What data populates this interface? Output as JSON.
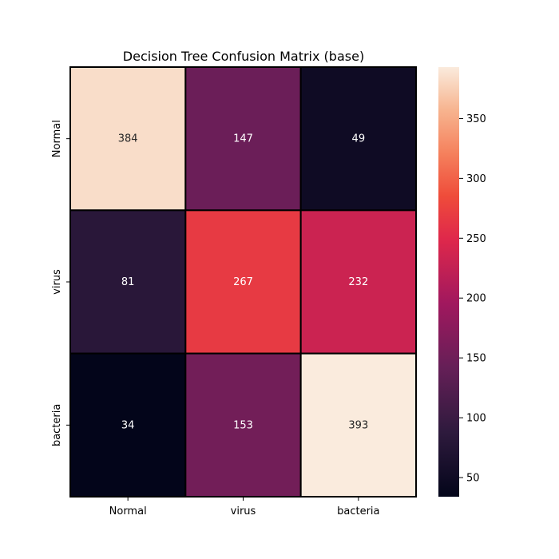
{
  "chart_data": {
    "type": "heatmap",
    "title": "Decision Tree Confusion Matrix (base)",
    "x_categories": [
      "Normal",
      "virus",
      "bacteria"
    ],
    "y_categories": [
      "Normal",
      "virus",
      "bacteria"
    ],
    "values": [
      [
        384,
        147,
        49
      ],
      [
        81,
        267,
        232
      ],
      [
        34,
        153,
        393
      ]
    ],
    "colorbar": {
      "min": 34,
      "max": 393,
      "ticks": [
        50,
        100,
        150,
        200,
        250,
        300,
        350
      ]
    },
    "colormap": "rocket",
    "colormap_stops": [
      [
        0.0,
        "#03051a"
      ],
      [
        0.15,
        "#2e1a3d"
      ],
      [
        0.3,
        "#651f57"
      ],
      [
        0.45,
        "#a1185e"
      ],
      [
        0.6,
        "#df284b"
      ],
      [
        0.7,
        "#ef4c3a"
      ],
      [
        0.8,
        "#f5815d"
      ],
      [
        0.9,
        "#f7b48f"
      ],
      [
        1.0,
        "#faebdd"
      ]
    ],
    "cell_border_color": "#000000"
  }
}
